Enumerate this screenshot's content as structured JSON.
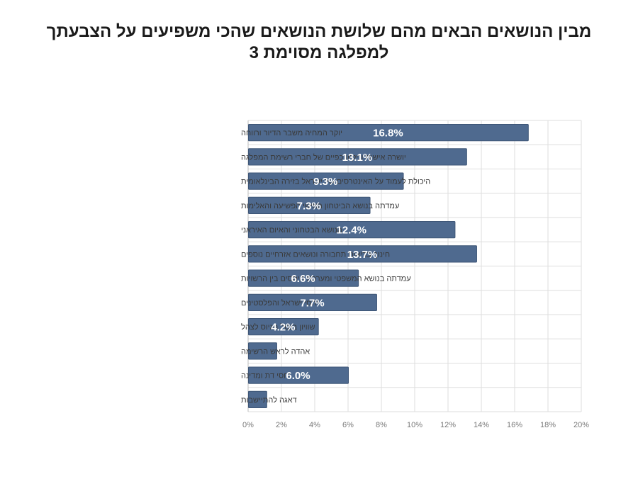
{
  "title": "מבין הנושאים הבאים מהם שלושת הנושאים שהכי משפיעים על הצבעתך למפלגה מסוימת 3",
  "chart_data": {
    "type": "bar",
    "orientation": "horizontal",
    "categories": [
      "יוקר המחיה משבר הדיור ורווחה",
      "יושרה אישית וניקיון כפיים של חברי רשימת המפלגה",
      "היכולת לעמוד על האינטרסים של ישראל בזירה הבינלאומית",
      "עמדתה בנושא הביטחון האישי הפשיעה והאלימות",
      "הנושא הבטחוני והאיום האיראני",
      "חינוך בריאות תחבורה ונושאים אזרחיים נוספים",
      "עמדתה בנושא המשפטי ומערכת היחסים בין הרשויות",
      "יחסי ישראל והפלסטינים",
      "שוויון בנטל הגיוס לצהל",
      "אהדה לראש הרשימה",
      "יחסי דת ומדינה",
      "דאגה להתיישבות"
    ],
    "values": [
      16.8,
      13.1,
      9.3,
      7.3,
      12.4,
      13.7,
      6.6,
      7.7,
      4.2,
      1.7,
      6.0,
      1.1
    ],
    "data_labels": [
      "16.8%",
      "13.1%",
      "9.3%",
      "7.3%",
      "12.4%",
      "13.7%",
      "6.6%",
      "7.7%",
      "4.2%",
      "",
      "6.0%",
      ""
    ],
    "xlim": [
      0,
      20
    ],
    "xticks": [
      "0%",
      "2%",
      "4%",
      "6%",
      "8%",
      "10%",
      "12%",
      "14%",
      "16%",
      "18%",
      "20%"
    ],
    "bar_color": "#4f6a8f",
    "grid": true
  }
}
